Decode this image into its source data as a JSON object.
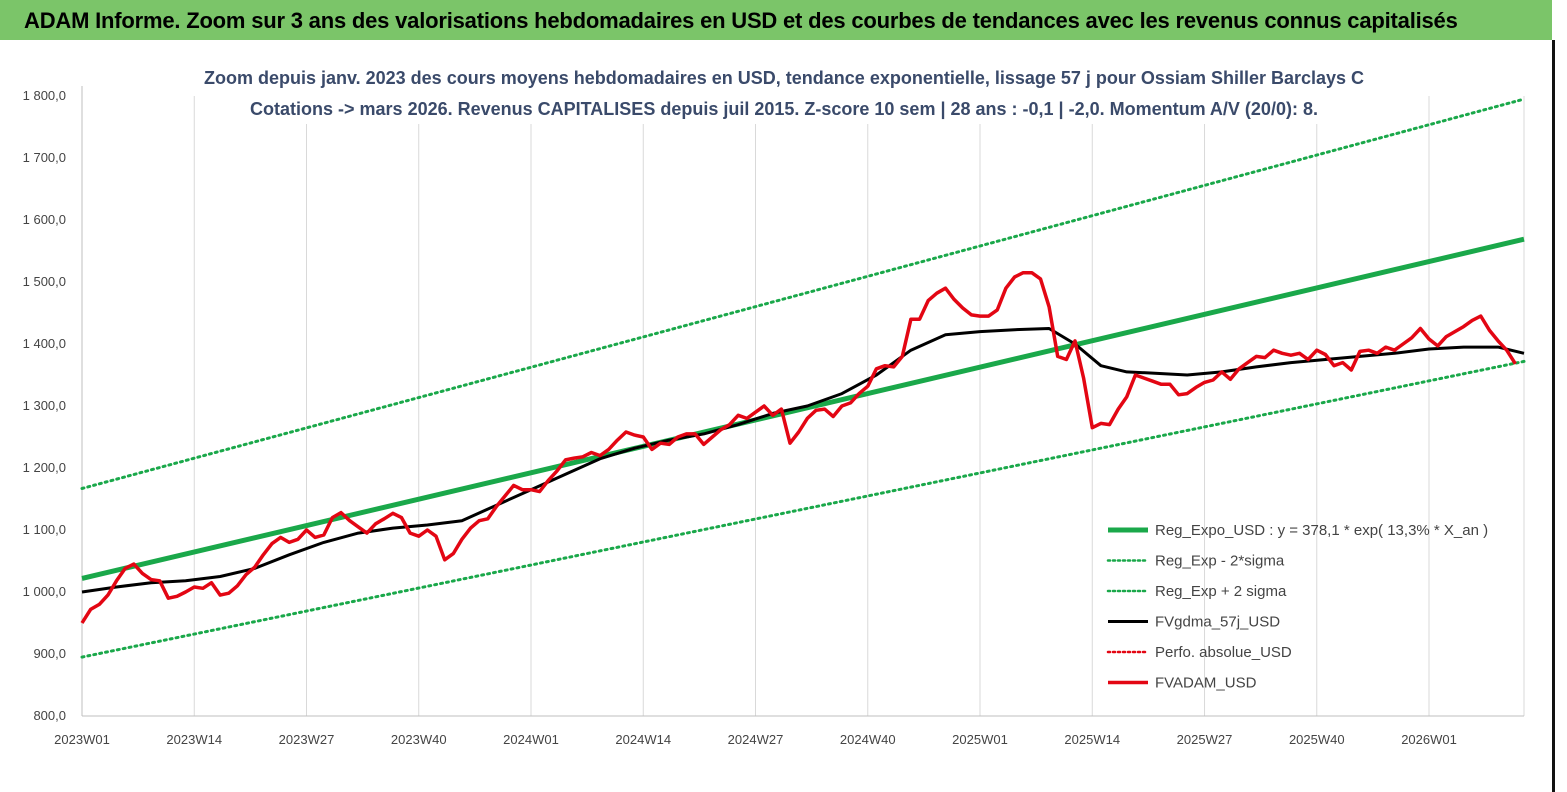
{
  "banner": {
    "title": "ADAM Informe. Zoom sur 3 ans des valorisations hebdomadaires en USD et des courbes de tendances avec les revenus connus capitalisés"
  },
  "colors": {
    "banner_bg": "#7bc569",
    "trend_green": "#1aa84a",
    "price_red": "#e30613",
    "sma_black": "#000000",
    "grid": "#d9d9d9"
  },
  "chart_data": {
    "type": "line",
    "title": "Zoom depuis janv. 2023 des cours moyens hebdomadaires en USD, tendance exponentielle, lissage 57 j pour Ossiam Shiller Barclays C",
    "subtitle": "Cotations -> mars 2026. Revenus CAPITALISES depuis juil 2015.  Z-score 10 sem | 28 ans : -0,1 | -2,0. Momentum A/V (20/0): 8.",
    "xlabel": "",
    "ylabel": "",
    "ylim": [
      800,
      1800
    ],
    "yticks": [
      800,
      900,
      1000,
      1100,
      1200,
      1300,
      1400,
      1500,
      1600,
      1700,
      1800
    ],
    "ytick_labels": [
      "800,0",
      "900,0",
      "1 000,0",
      "1 100,0",
      "1 200,0",
      "1 300,0",
      "1 400,0",
      "1 500,0",
      "1 600,0",
      "1 700,0",
      "1 800,0"
    ],
    "xticks": [
      {
        "week": 0,
        "label": "2023W01"
      },
      {
        "week": 13,
        "label": "2023W14"
      },
      {
        "week": 26,
        "label": "2023W27"
      },
      {
        "week": 39,
        "label": "2023W40"
      },
      {
        "week": 52,
        "label": "2024W01"
      },
      {
        "week": 65,
        "label": "2024W14"
      },
      {
        "week": 78,
        "label": "2024W27"
      },
      {
        "week": 91,
        "label": "2024W40"
      },
      {
        "week": 104,
        "label": "2025W01"
      },
      {
        "week": 117,
        "label": "2025W14"
      },
      {
        "week": 130,
        "label": "2025W27"
      },
      {
        "week": 143,
        "label": "2025W40"
      },
      {
        "week": 156,
        "label": "2026W01"
      }
    ],
    "x_max_week": 167,
    "grid": "vertical",
    "legend_position": "bottom-right",
    "series": [
      {
        "name": "Reg_Expo_USD : y = 378,1 * exp( 13,3% *  X_an )",
        "style": "thick",
        "color": "#1aa84a",
        "points": [
          [
            0,
            1022
          ],
          [
            167,
            1569
          ]
        ]
      },
      {
        "name": "Reg_Exp - 2*sigma",
        "style": "dotted",
        "color": "#1aa84a",
        "points": [
          [
            0,
            895
          ],
          [
            167,
            1372
          ]
        ]
      },
      {
        "name": "Reg_Exp + 2 sigma",
        "style": "dotted",
        "color": "#1aa84a",
        "points": [
          [
            0,
            1167
          ],
          [
            167,
            1795
          ]
        ]
      },
      {
        "name": "FVgdma_57j_USD",
        "style": "solid",
        "color": "#000000",
        "points": [
          [
            0,
            1000
          ],
          [
            4,
            1008
          ],
          [
            8,
            1015
          ],
          [
            12,
            1018
          ],
          [
            16,
            1025
          ],
          [
            20,
            1038
          ],
          [
            24,
            1060
          ],
          [
            28,
            1080
          ],
          [
            32,
            1095
          ],
          [
            36,
            1103
          ],
          [
            40,
            1108
          ],
          [
            44,
            1115
          ],
          [
            48,
            1140
          ],
          [
            52,
            1165
          ],
          [
            56,
            1190
          ],
          [
            60,
            1215
          ],
          [
            64,
            1232
          ],
          [
            68,
            1245
          ],
          [
            72,
            1255
          ],
          [
            76,
            1270
          ],
          [
            80,
            1288
          ],
          [
            84,
            1300
          ],
          [
            88,
            1320
          ],
          [
            92,
            1350
          ],
          [
            96,
            1390
          ],
          [
            100,
            1415
          ],
          [
            104,
            1420
          ],
          [
            108,
            1423
          ],
          [
            112,
            1425
          ],
          [
            115,
            1400
          ],
          [
            118,
            1365
          ],
          [
            121,
            1355
          ],
          [
            124,
            1353
          ],
          [
            128,
            1350
          ],
          [
            132,
            1355
          ],
          [
            136,
            1363
          ],
          [
            140,
            1370
          ],
          [
            144,
            1375
          ],
          [
            148,
            1380
          ],
          [
            152,
            1385
          ],
          [
            156,
            1392
          ],
          [
            160,
            1395
          ],
          [
            164,
            1395
          ],
          [
            167,
            1385
          ]
        ]
      },
      {
        "name": "Perfo. absolue_USD",
        "style": "dotted",
        "color": "#e30613",
        "points": []
      },
      {
        "name": "FVADAM_USD",
        "style": "solid",
        "color": "#e30613",
        "points": [
          [
            0,
            950
          ],
          [
            1,
            972
          ],
          [
            2,
            980
          ],
          [
            3,
            995
          ],
          [
            4,
            1018
          ],
          [
            5,
            1038
          ],
          [
            6,
            1045
          ],
          [
            7,
            1030
          ],
          [
            8,
            1020
          ],
          [
            9,
            1018
          ],
          [
            10,
            990
          ],
          [
            11,
            993
          ],
          [
            12,
            1000
          ],
          [
            13,
            1008
          ],
          [
            14,
            1006
          ],
          [
            15,
            1015
          ],
          [
            16,
            995
          ],
          [
            17,
            998
          ],
          [
            18,
            1010
          ],
          [
            19,
            1028
          ],
          [
            20,
            1040
          ],
          [
            21,
            1060
          ],
          [
            22,
            1078
          ],
          [
            23,
            1088
          ],
          [
            24,
            1080
          ],
          [
            25,
            1085
          ],
          [
            26,
            1100
          ],
          [
            27,
            1088
          ],
          [
            28,
            1092
          ],
          [
            29,
            1120
          ],
          [
            30,
            1128
          ],
          [
            31,
            1115
          ],
          [
            32,
            1105
          ],
          [
            33,
            1095
          ],
          [
            34,
            1110
          ],
          [
            35,
            1118
          ],
          [
            36,
            1127
          ],
          [
            37,
            1120
          ],
          [
            38,
            1095
          ],
          [
            39,
            1090
          ],
          [
            40,
            1100
          ],
          [
            41,
            1090
          ],
          [
            42,
            1052
          ],
          [
            43,
            1062
          ],
          [
            44,
            1085
          ],
          [
            45,
            1103
          ],
          [
            46,
            1115
          ],
          [
            47,
            1118
          ],
          [
            48,
            1138
          ],
          [
            49,
            1155
          ],
          [
            50,
            1172
          ],
          [
            51,
            1165
          ],
          [
            52,
            1165
          ],
          [
            53,
            1162
          ],
          [
            54,
            1180
          ],
          [
            55,
            1195
          ],
          [
            56,
            1213
          ],
          [
            57,
            1216
          ],
          [
            58,
            1218
          ],
          [
            59,
            1225
          ],
          [
            60,
            1220
          ],
          [
            61,
            1230
          ],
          [
            62,
            1245
          ],
          [
            63,
            1258
          ],
          [
            64,
            1253
          ],
          [
            65,
            1250
          ],
          [
            66,
            1230
          ],
          [
            67,
            1240
          ],
          [
            68,
            1238
          ],
          [
            69,
            1250
          ],
          [
            70,
            1255
          ],
          [
            71,
            1255
          ],
          [
            72,
            1238
          ],
          [
            73,
            1250
          ],
          [
            74,
            1262
          ],
          [
            75,
            1270
          ],
          [
            76,
            1285
          ],
          [
            77,
            1280
          ],
          [
            78,
            1290
          ],
          [
            79,
            1300
          ],
          [
            80,
            1285
          ],
          [
            81,
            1295
          ],
          [
            82,
            1240
          ],
          [
            83,
            1258
          ],
          [
            84,
            1280
          ],
          [
            85,
            1293
          ],
          [
            86,
            1295
          ],
          [
            87,
            1283
          ],
          [
            88,
            1300
          ],
          [
            89,
            1305
          ],
          [
            90,
            1320
          ],
          [
            91,
            1332
          ],
          [
            92,
            1360
          ],
          [
            93,
            1365
          ],
          [
            94,
            1363
          ],
          [
            95,
            1380
          ],
          [
            96,
            1440
          ],
          [
            97,
            1440
          ],
          [
            98,
            1470
          ],
          [
            99,
            1482
          ],
          [
            100,
            1490
          ],
          [
            101,
            1472
          ],
          [
            102,
            1458
          ],
          [
            103,
            1447
          ],
          [
            104,
            1445
          ],
          [
            105,
            1445
          ],
          [
            106,
            1455
          ],
          [
            107,
            1490
          ],
          [
            108,
            1508
          ],
          [
            109,
            1515
          ],
          [
            110,
            1515
          ],
          [
            111,
            1505
          ],
          [
            112,
            1460
          ],
          [
            113,
            1380
          ],
          [
            114,
            1375
          ],
          [
            115,
            1405
          ],
          [
            116,
            1345
          ],
          [
            117,
            1265
          ],
          [
            118,
            1272
          ],
          [
            119,
            1270
          ],
          [
            120,
            1295
          ],
          [
            121,
            1315
          ],
          [
            122,
            1350
          ],
          [
            123,
            1345
          ],
          [
            124,
            1340
          ],
          [
            125,
            1335
          ],
          [
            126,
            1335
          ],
          [
            127,
            1318
          ],
          [
            128,
            1320
          ],
          [
            129,
            1330
          ],
          [
            130,
            1338
          ],
          [
            131,
            1342
          ],
          [
            132,
            1355
          ],
          [
            133,
            1343
          ],
          [
            134,
            1360
          ],
          [
            135,
            1370
          ],
          [
            136,
            1380
          ],
          [
            137,
            1378
          ],
          [
            138,
            1390
          ],
          [
            139,
            1385
          ],
          [
            140,
            1382
          ],
          [
            141,
            1385
          ],
          [
            142,
            1375
          ],
          [
            143,
            1390
          ],
          [
            144,
            1383
          ],
          [
            145,
            1365
          ],
          [
            146,
            1370
          ],
          [
            147,
            1358
          ],
          [
            148,
            1388
          ],
          [
            149,
            1390
          ],
          [
            150,
            1385
          ],
          [
            151,
            1395
          ],
          [
            152,
            1390
          ],
          [
            153,
            1400
          ],
          [
            154,
            1410
          ],
          [
            155,
            1425
          ],
          [
            156,
            1408
          ],
          [
            157,
            1397
          ],
          [
            158,
            1412
          ],
          [
            159,
            1420
          ],
          [
            160,
            1428
          ],
          [
            161,
            1438
          ],
          [
            162,
            1445
          ],
          [
            163,
            1422
          ],
          [
            164,
            1405
          ],
          [
            165,
            1390
          ],
          [
            166,
            1368
          ]
        ]
      }
    ]
  }
}
